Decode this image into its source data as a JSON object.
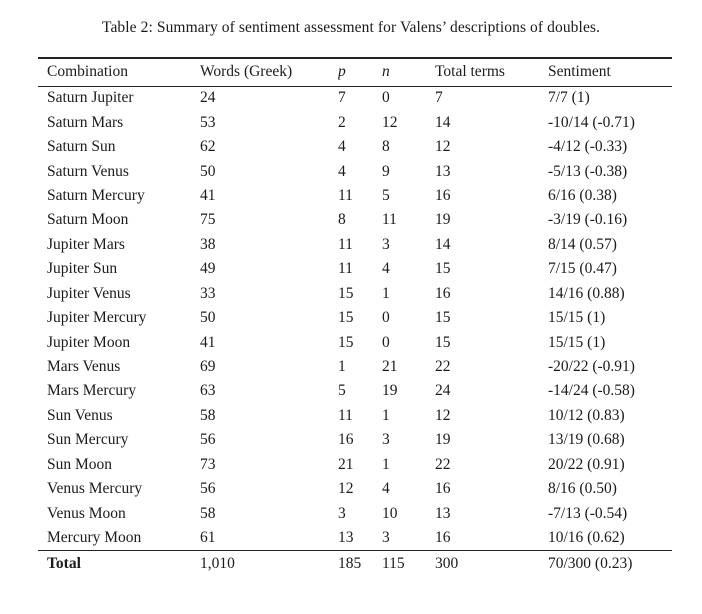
{
  "title": "Table 2: Summary of sentiment assessment for Valens’ descriptions of doubles.",
  "table": {
    "columns": [
      "Combination",
      "Words (Greek)",
      "p",
      "n",
      "Total terms",
      "Sentiment"
    ],
    "rows": [
      [
        "Saturn Jupiter",
        "24",
        "7",
        "0",
        "7",
        "7/7 (1)"
      ],
      [
        "Saturn Mars",
        "53",
        "2",
        "12",
        "14",
        "-10/14 (-0.71)"
      ],
      [
        "Saturn Sun",
        "62",
        "4",
        "8",
        "12",
        "-4/12 (-0.33)"
      ],
      [
        "Saturn Venus",
        "50",
        "4",
        "9",
        "13",
        "-5/13 (-0.38)"
      ],
      [
        "Saturn Mercury",
        "41",
        "11",
        "5",
        "16",
        "6/16 (0.38)"
      ],
      [
        "Saturn Moon",
        "75",
        "8",
        "11",
        "19",
        "-3/19 (-0.16)"
      ],
      [
        "Jupiter Mars",
        "38",
        "11",
        "3",
        "14",
        "8/14 (0.57)"
      ],
      [
        "Jupiter Sun",
        "49",
        "11",
        "4",
        "15",
        "7/15 (0.47)"
      ],
      [
        "Jupiter Venus",
        "33",
        "15",
        "1",
        "16",
        "14/16 (0.88)"
      ],
      [
        "Jupiter Mercury",
        "50",
        "15",
        "0",
        "15",
        "15/15 (1)"
      ],
      [
        "Jupiter Moon",
        "41",
        "15",
        "0",
        "15",
        "15/15 (1)"
      ],
      [
        "Mars Venus",
        "69",
        "1",
        "21",
        "22",
        "-20/22 (-0.91)"
      ],
      [
        "Mars Mercury",
        "63",
        "5",
        "19",
        "24",
        "-14/24 (-0.58)"
      ],
      [
        "Sun Venus",
        "58",
        "11",
        "1",
        "12",
        "10/12 (0.83)"
      ],
      [
        "Sun Mercury",
        "56",
        "16",
        "3",
        "19",
        "13/19 (0.68)"
      ],
      [
        "Sun Moon",
        "73",
        "21",
        "1",
        "22",
        "20/22 (0.91)"
      ],
      [
        "Venus Mercury",
        "56",
        "12",
        "4",
        "16",
        "8/16 (0.50)"
      ],
      [
        "Venus Moon",
        "58",
        "3",
        "10",
        "13",
        "-7/13 (-0.54)"
      ],
      [
        "Mercury Moon",
        "61",
        "13",
        "3",
        "16",
        "10/16 (0.62)"
      ]
    ],
    "total_row": [
      "Total",
      "1,010",
      "185",
      "115",
      "300",
      "70/300 (0.23)"
    ]
  }
}
